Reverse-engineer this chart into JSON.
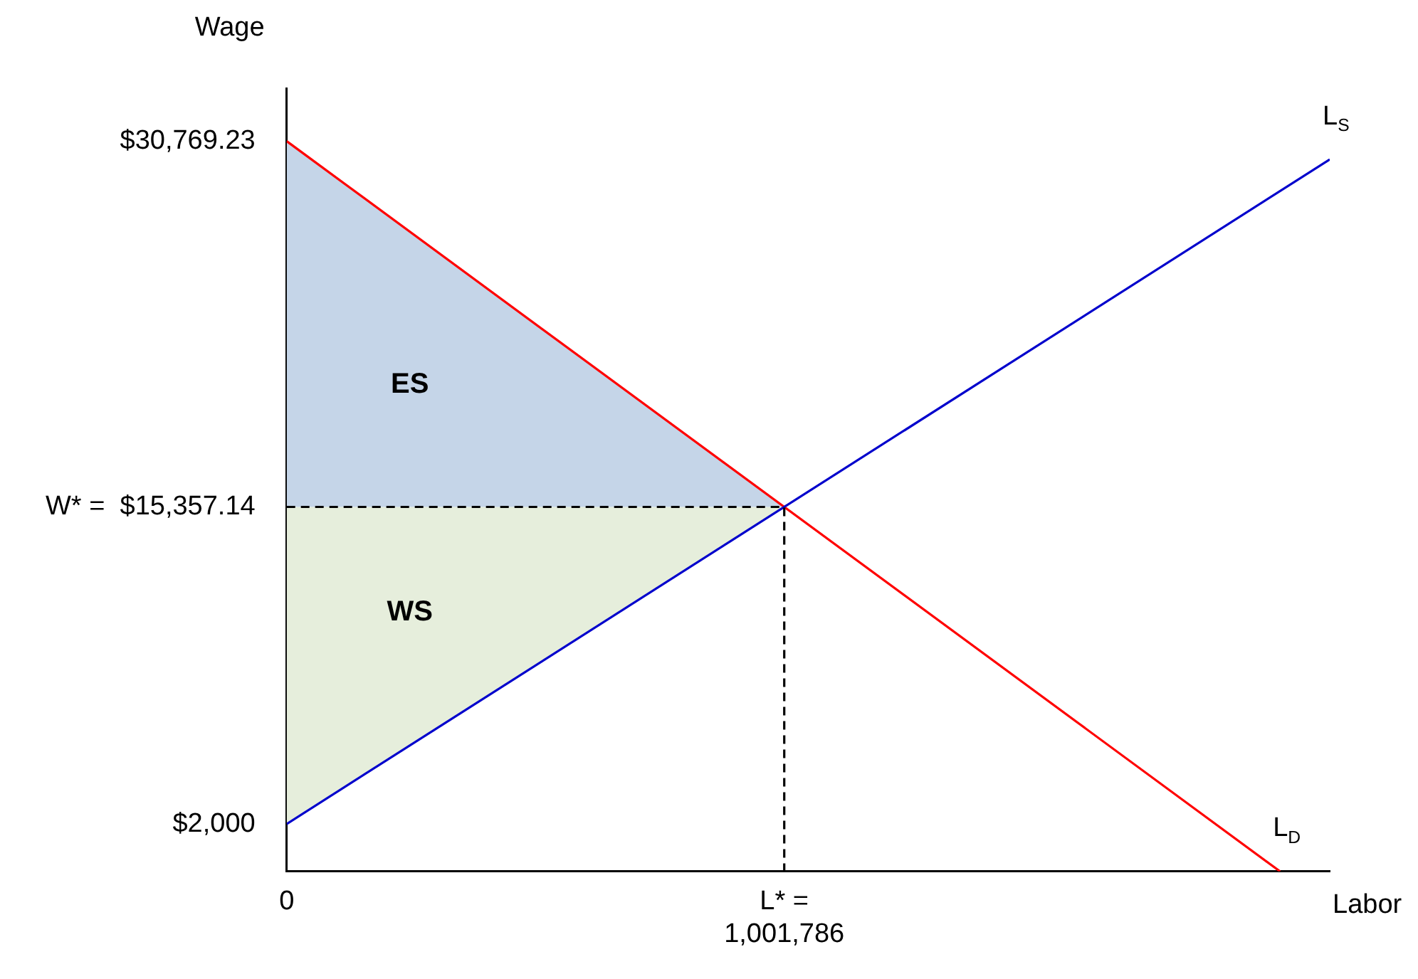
{
  "chart_data": {
    "type": "line",
    "xlabel": "Labor",
    "ylabel": "Wage",
    "xlim": [
      0,
      2100000
    ],
    "ylim": [
      0,
      33000
    ],
    "xticks": [
      0,
      {
        "value": 1001786,
        "label": "L* = 1,001,786"
      }
    ],
    "yticks": [
      {
        "value": 2000,
        "label": "$2,000"
      },
      {
        "value": 15357.14,
        "label": "W* =  $15,357.14"
      },
      {
        "value": 30769.23,
        "label": "$30,769.23"
      }
    ],
    "grid": false,
    "legend": false,
    "marker": "none",
    "series": [
      {
        "type": "area",
        "name": "ES",
        "color": "#c5d5e8",
        "x": [
          0,
          1001786,
          0
        ],
        "values": [
          30769.23,
          15357.14,
          15357.14
        ]
      },
      {
        "type": "area",
        "name": "WS",
        "color": "#e6eedc",
        "x": [
          0,
          1001786,
          0
        ],
        "values": [
          15357.14,
          15357.14,
          2000
        ]
      },
      {
        "line_style": "dashed",
        "color": "#000000",
        "x": [
          0,
          1001786,
          1001786
        ],
        "values": [
          15357.14,
          15357.14,
          0
        ]
      },
      {
        "name": "L$_{S}$",
        "color": "#0000cc",
        "x": [
          0,
          2100000
        ],
        "values": [
          2000,
          30000
        ]
      },
      {
        "name": "L$_{D}$",
        "color": "#ff0000",
        "x": [
          0,
          2000000
        ],
        "values": [
          30769.23,
          0
        ]
      }
    ]
  }
}
